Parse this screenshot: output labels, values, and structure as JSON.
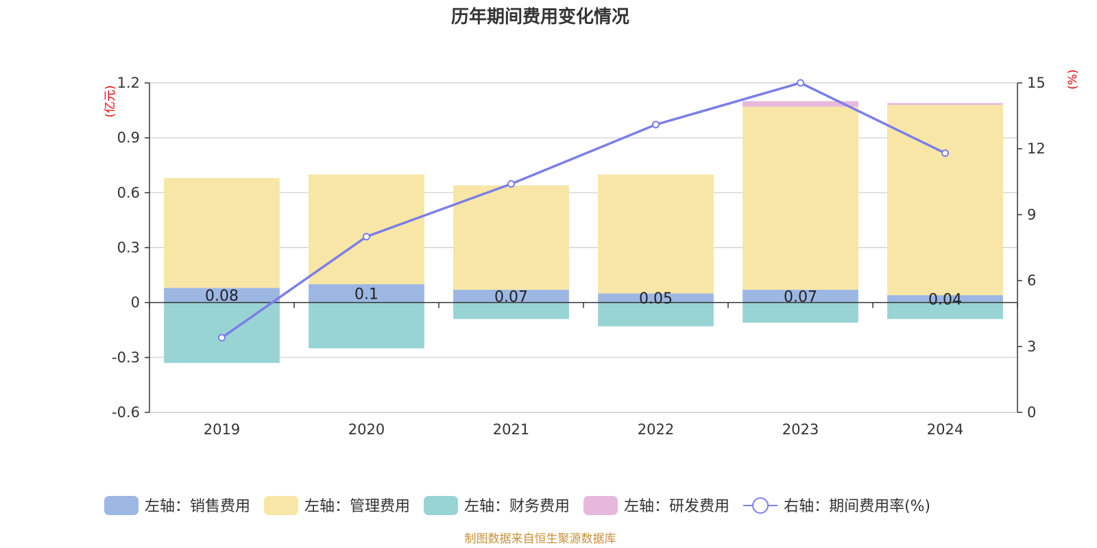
{
  "chart_data": {
    "type": "bar",
    "title": "历年期间费用变化情况",
    "categories": [
      "2019",
      "2020",
      "2021",
      "2022",
      "2023",
      "2024"
    ],
    "stacked": true,
    "left_axis": {
      "unit": "(亿元)",
      "ylim": [
        -0.6,
        1.2
      ],
      "ticks": [
        "-0.6",
        "-0.3",
        "0",
        "0.3",
        "0.6",
        "0.9",
        "1.2"
      ]
    },
    "right_axis": {
      "unit": "(%)",
      "ylim": [
        0,
        15
      ],
      "ticks": [
        "0",
        "3",
        "6",
        "9",
        "12",
        "15"
      ]
    },
    "series": [
      {
        "name": "左轴：销售费用",
        "type": "bar",
        "axis": "left",
        "color": "#9db7e3",
        "values": [
          0.08,
          0.1,
          0.07,
          0.05,
          0.07,
          0.04
        ],
        "show_labels": true
      },
      {
        "name": "左轴：管理费用",
        "type": "bar",
        "axis": "left",
        "color": "#f7e6a6",
        "values": [
          0.6,
          0.6,
          0.57,
          0.65,
          1.0,
          1.04
        ],
        "show_labels": false
      },
      {
        "name": "左轴：财务费用",
        "type": "bar",
        "axis": "left",
        "color": "#98d4d4",
        "values": [
          -0.33,
          -0.25,
          -0.09,
          -0.13,
          -0.11,
          -0.09
        ],
        "show_labels": false
      },
      {
        "name": "左轴：研发费用",
        "type": "bar",
        "axis": "left",
        "color": "#e8b8dc",
        "values": [
          0,
          0,
          0,
          0,
          0.03,
          0.01
        ],
        "show_labels": false
      },
      {
        "name": "右轴：期间费用率(%)",
        "type": "line",
        "axis": "right",
        "color": "#7b7ee8",
        "values": [
          3.4,
          8.0,
          10.4,
          13.1,
          15.0,
          11.8
        ]
      }
    ],
    "legend_position": "bottom",
    "grid": true
  },
  "source_note": "制图数据来自恒生聚源数据库"
}
